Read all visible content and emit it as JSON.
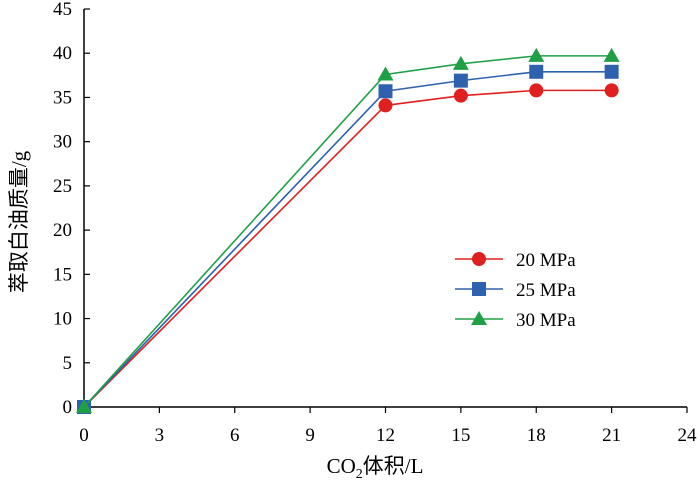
{
  "chart_data": {
    "type": "line",
    "title": "",
    "xlabel": {
      "prefix": "CO",
      "subscript": "2",
      "suffix": "体积/L"
    },
    "ylabel": "萃取白油质量/g",
    "xlim": [
      0,
      24
    ],
    "ylim": [
      0,
      45
    ],
    "xticks": [
      0,
      3,
      6,
      9,
      12,
      15,
      18,
      21,
      24
    ],
    "yticks": [
      0,
      5,
      10,
      15,
      20,
      25,
      30,
      35,
      40,
      45
    ],
    "x": [
      0,
      12,
      15,
      18,
      21
    ],
    "grid": false,
    "legend": "center-right",
    "series": [
      {
        "name": "20 MPa",
        "color": "#e02020",
        "marker": "circle",
        "values": [
          0,
          34.1,
          35.2,
          35.8,
          35.8
        ]
      },
      {
        "name": "25 MPa",
        "color": "#2e62ae",
        "marker": "square",
        "values": [
          0,
          35.7,
          36.9,
          37.9,
          37.9
        ]
      },
      {
        "name": "30 MPa",
        "color": "#1fa045",
        "marker": "triangle",
        "values": [
          0,
          37.6,
          38.8,
          39.7,
          39.7
        ]
      }
    ]
  }
}
